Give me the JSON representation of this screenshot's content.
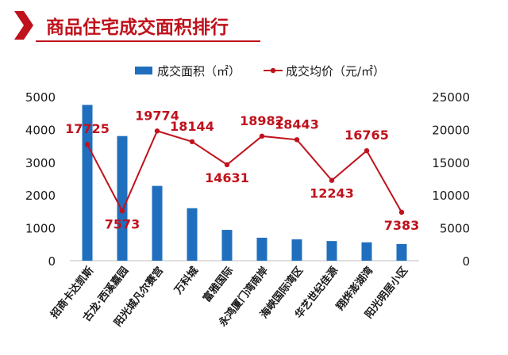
{
  "slide": {
    "title": "商品住宅成交面积排行"
  },
  "colors": {
    "accent": "#c0121c",
    "bar": "#1f6fbe",
    "line": "#c0121c",
    "text": "#1a1a1a",
    "label": "#c0121c",
    "axis": "#bfbfbf"
  },
  "chart_data": {
    "type": "bar",
    "categories": [
      "招商卡达凯斯",
      "古龙·西溪嘉园",
      "阳光城凡尔赛宫",
      "万科城",
      "富雅国际",
      "永鸿厦门湾南岸",
      "海峡国际湾区",
      "华艺世纪佳源",
      "翔烨澎湖湾",
      "阳光明居小区"
    ],
    "series": [
      {
        "name": "成交面积（㎡）",
        "type": "bar",
        "axis": "left",
        "values": [
          4750,
          3800,
          2280,
          1600,
          940,
          700,
          650,
          600,
          560,
          510
        ]
      },
      {
        "name": "成交均价（元/㎡）",
        "type": "line",
        "axis": "right",
        "values": [
          17725,
          7573,
          19774,
          18144,
          14631,
          18982,
          18443,
          12243,
          16765,
          7383
        ],
        "labels": [
          "17725",
          "7573",
          "19774",
          "18144",
          "14631",
          "18982",
          "18443",
          "12243",
          "16765",
          "7383"
        ]
      }
    ],
    "y_left": {
      "lim": [
        0,
        5000
      ],
      "ticks": [
        "0",
        "1000",
        "2000",
        "3000",
        "4000",
        "5000"
      ]
    },
    "y_right": {
      "lim": [
        0,
        25000
      ],
      "ticks": [
        "0",
        "5000",
        "10000",
        "15000",
        "20000",
        "25000"
      ]
    },
    "legend_position": "top-center",
    "grid": false
  }
}
